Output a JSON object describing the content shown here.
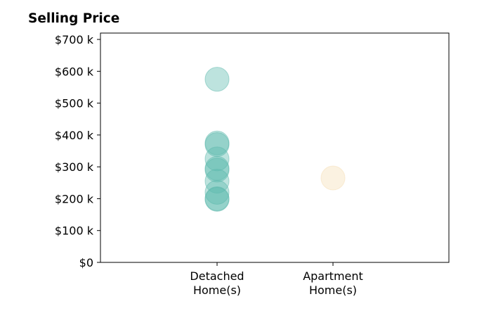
{
  "chart_data": {
    "type": "scatter",
    "title": "Selling Price",
    "xlabel": "",
    "ylabel": "",
    "categories": [
      "Detached Home(s)",
      "Apartment Home(s)"
    ],
    "category_tick_lines": [
      [
        "Detached",
        "Home(s)"
      ],
      [
        "Apartment",
        "Home(s)"
      ]
    ],
    "ylim": [
      0,
      720000
    ],
    "y_ticks": [
      0,
      100000,
      200000,
      300000,
      400000,
      500000,
      600000,
      700000
    ],
    "y_tick_labels": [
      "$0",
      "$100 k",
      "$200 k",
      "$300 k",
      "$400 k",
      "$500 k",
      "$600 k",
      "$700 k"
    ],
    "grid": false,
    "series": [
      {
        "category": "Detached Home(s)",
        "color": "#5bb8ac",
        "values": [
          575000,
          375000,
          370000,
          325000,
          295000,
          290000,
          255000,
          220000,
          200000,
          198000
        ]
      },
      {
        "category": "Apartment Home(s)",
        "color": "#f5deb3",
        "values": [
          265000
        ]
      }
    ]
  }
}
